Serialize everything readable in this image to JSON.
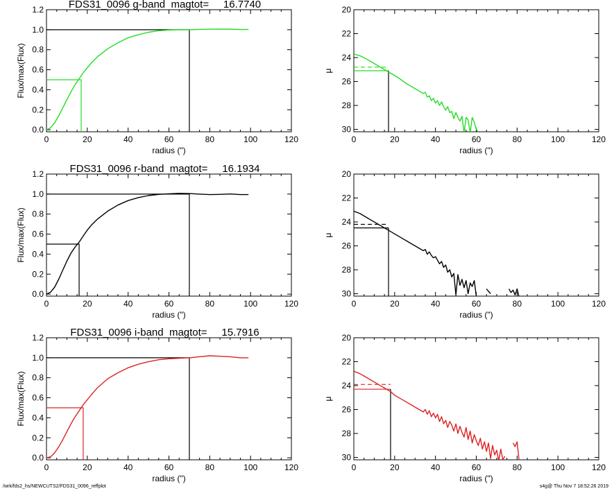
{
  "footer": {
    "left": "/wrk/fds2_hs/NEWCUTS2/FDS31_0096_reffplot",
    "right": "s4g@  Thu Nov  7 18:52:26 2019"
  },
  "chart_data": [
    {
      "type": "line",
      "title": "FDS31_0096 g-band  magtot=     16.7740",
      "xlabel": "radius (\")",
      "ylabel": "Flux/max(Flux)",
      "xlim": [
        0,
        120
      ],
      "ylim": [
        -0.02,
        1.2
      ],
      "xticks": [
        0,
        20,
        40,
        60,
        80,
        100,
        120
      ],
      "yticks": [
        0.0,
        0.2,
        0.4,
        0.6,
        0.8,
        1.0,
        1.2
      ],
      "ytick_labels": [
        "0.0",
        "0.2",
        "0.4",
        "0.6",
        "0.8",
        "1.0",
        "1.2"
      ],
      "color": "#22dd22",
      "series": [
        {
          "x": [
            0,
            2,
            4,
            6,
            8,
            10,
            12,
            14,
            16,
            18,
            20,
            22,
            25,
            30,
            35,
            40,
            45,
            50,
            55,
            60,
            65,
            70,
            75,
            80,
            85,
            90,
            95,
            99
          ],
          "y": [
            0.0,
            0.02,
            0.07,
            0.14,
            0.22,
            0.3,
            0.38,
            0.45,
            0.51,
            0.57,
            0.62,
            0.67,
            0.73,
            0.81,
            0.87,
            0.92,
            0.95,
            0.975,
            0.99,
            0.997,
            1.0,
            1.0,
            1.003,
            1.005,
            1.006,
            1.006,
            1.002,
            1.003
          ]
        }
      ],
      "reference_lines": {
        "total": {
          "x": 70,
          "y": 1.0,
          "color": "#000000"
        },
        "half": {
          "x": 17,
          "y": 0.5,
          "color": "#22dd22"
        }
      }
    },
    {
      "type": "line",
      "xlabel": "radius (\")",
      "ylabel": "μ",
      "xlim": [
        0,
        120
      ],
      "ylim": [
        30.2,
        20
      ],
      "xticks": [
        0,
        20,
        40,
        60,
        80,
        100,
        120
      ],
      "yticks": [
        20,
        22,
        24,
        26,
        28,
        30
      ],
      "color": "#22dd22",
      "series": [
        {
          "x": [
            0,
            3,
            6,
            9,
            12,
            15,
            18,
            20,
            22,
            24,
            26,
            28,
            30,
            32,
            34,
            35,
            36,
            37,
            38,
            39,
            40,
            41,
            42,
            43,
            44,
            45,
            46,
            47,
            48,
            49,
            50,
            51,
            52,
            53,
            54,
            55,
            56,
            57,
            58,
            59,
            60,
            61
          ],
          "y": [
            23.7,
            23.85,
            24.1,
            24.4,
            24.7,
            25.0,
            25.3,
            25.5,
            25.7,
            25.95,
            26.2,
            26.4,
            26.6,
            26.8,
            27.0,
            26.9,
            27.3,
            27.2,
            27.6,
            27.4,
            27.8,
            27.6,
            28.0,
            27.7,
            28.1,
            28.4,
            28.1,
            28.6,
            28.5,
            29.1,
            28.6,
            29.0,
            29.3,
            28.9,
            30.3,
            29.0,
            29.2,
            30.3,
            29.0,
            29.4,
            30.0,
            30.2
          ]
        }
      ],
      "reference_lines": {
        "solid_y": 25.1,
        "dashed_y": 24.8,
        "x": 17,
        "color": "#22dd22"
      }
    },
    {
      "type": "line",
      "title": "FDS31_0096 r-band  magtot=     16.1934",
      "xlabel": "radius (\")",
      "ylabel": "Flux/max(Flux)",
      "xlim": [
        0,
        120
      ],
      "ylim": [
        -0.02,
        1.2
      ],
      "xticks": [
        0,
        20,
        40,
        60,
        80,
        100,
        120
      ],
      "yticks": [
        0.0,
        0.2,
        0.4,
        0.6,
        0.8,
        1.0,
        1.2
      ],
      "ytick_labels": [
        "0.0",
        "0.2",
        "0.4",
        "0.6",
        "0.8",
        "1.0",
        "1.2"
      ],
      "color": "#000000",
      "series": [
        {
          "x": [
            0,
            2,
            4,
            6,
            8,
            10,
            12,
            14,
            16,
            18,
            20,
            22,
            25,
            30,
            35,
            40,
            45,
            50,
            55,
            60,
            65,
            70,
            75,
            80,
            85,
            90,
            95,
            99
          ],
          "y": [
            0.0,
            0.02,
            0.07,
            0.15,
            0.24,
            0.33,
            0.41,
            0.47,
            0.52,
            0.58,
            0.64,
            0.69,
            0.75,
            0.83,
            0.89,
            0.935,
            0.965,
            0.985,
            0.997,
            1.003,
            1.007,
            1.005,
            1.0,
            0.995,
            0.997,
            1.001,
            0.995,
            0.995
          ]
        }
      ],
      "reference_lines": {
        "total": {
          "x": 70,
          "y": 1.0,
          "color": "#000000"
        },
        "half": {
          "x": 16,
          "y": 0.5,
          "color": "#000000"
        }
      }
    },
    {
      "type": "line",
      "xlabel": "radius (\")",
      "ylabel": "μ",
      "xlim": [
        0,
        120
      ],
      "ylim": [
        30.2,
        20
      ],
      "xticks": [
        0,
        20,
        40,
        60,
        80,
        100,
        120
      ],
      "yticks": [
        20,
        22,
        24,
        26,
        28,
        30
      ],
      "color": "#000000",
      "series": [
        {
          "x": [
            0,
            3,
            6,
            9,
            12,
            15,
            18,
            20,
            22,
            24,
            26,
            28,
            30,
            32,
            34,
            35,
            36,
            37,
            38,
            39,
            40,
            41,
            42,
            43,
            44,
            45,
            46,
            47,
            48,
            49,
            50,
            51,
            52,
            53,
            54,
            55,
            56,
            57,
            58,
            59,
            60,
            61
          ],
          "y": [
            23.1,
            23.3,
            23.6,
            23.9,
            24.2,
            24.5,
            24.8,
            25.0,
            25.2,
            25.4,
            25.6,
            25.8,
            26.0,
            26.2,
            26.4,
            26.3,
            26.7,
            26.5,
            26.8,
            27.0,
            26.9,
            27.2,
            27.5,
            27.3,
            27.8,
            27.6,
            28.2,
            28.0,
            28.6,
            28.3,
            30.1,
            28.4,
            29.3,
            28.8,
            29.5,
            28.9,
            30.0,
            29.1,
            29.4,
            28.9,
            30.2,
            30.3
          ]
        },
        {
          "x": [
            65,
            66,
            67
          ],
          "y": [
            29.6,
            29.8,
            30.0
          ]
        },
        {
          "x": [
            76,
            77,
            78,
            79,
            80,
            81
          ],
          "y": [
            29.6,
            29.9,
            29.7,
            30.1,
            29.6,
            30.3
          ]
        }
      ],
      "reference_lines": {
        "solid_y": 24.5,
        "dashed_y": 24.2,
        "x": 17,
        "color": "#000000"
      }
    },
    {
      "type": "line",
      "title": "FDS31_0096 i-band  magtot=     15.7916",
      "xlabel": "radius (\")",
      "ylabel": "Flux/max(Flux)",
      "xlim": [
        0,
        120
      ],
      "ylim": [
        -0.02,
        1.2
      ],
      "xticks": [
        0,
        20,
        40,
        60,
        80,
        100,
        120
      ],
      "yticks": [
        0.0,
        0.2,
        0.4,
        0.6,
        0.8,
        1.0,
        1.2
      ],
      "ytick_labels": [
        "0.0",
        "0.2",
        "0.4",
        "0.6",
        "0.8",
        "1.0",
        "1.2"
      ],
      "color": "#dd2222",
      "series": [
        {
          "x": [
            0,
            2,
            4,
            6,
            8,
            10,
            12,
            14,
            16,
            18,
            20,
            22,
            25,
            30,
            35,
            40,
            45,
            50,
            55,
            60,
            65,
            70,
            75,
            80,
            85,
            90,
            95,
            99
          ],
          "y": [
            0.0,
            0.01,
            0.05,
            0.11,
            0.18,
            0.26,
            0.34,
            0.41,
            0.47,
            0.53,
            0.58,
            0.63,
            0.7,
            0.79,
            0.85,
            0.9,
            0.935,
            0.96,
            0.98,
            0.99,
            0.995,
            1.0,
            1.01,
            1.02,
            1.015,
            1.01,
            1.0,
            1.0
          ]
        }
      ],
      "reference_lines": {
        "total": {
          "x": 70,
          "y": 1.0,
          "color": "#000000"
        },
        "half": {
          "x": 18,
          "y": 0.5,
          "color": "#dd2222"
        }
      }
    },
    {
      "type": "line",
      "xlabel": "radius (\")",
      "ylabel": "μ",
      "xlim": [
        0,
        120
      ],
      "ylim": [
        30.2,
        20
      ],
      "xticks": [
        0,
        20,
        40,
        60,
        80,
        100,
        120
      ],
      "yticks": [
        20,
        22,
        24,
        26,
        28,
        30
      ],
      "color": "#dd2222",
      "series": [
        {
          "x": [
            0,
            3,
            6,
            9,
            12,
            15,
            18,
            20,
            22,
            24,
            26,
            28,
            30,
            32,
            34,
            35,
            36,
            37,
            38,
            39,
            40,
            41,
            42,
            43,
            44,
            45,
            46,
            47,
            48,
            49,
            50,
            51,
            52,
            53,
            54,
            55,
            56,
            57,
            58,
            59,
            60,
            61,
            62,
            63,
            64,
            65,
            66,
            67,
            68,
            69,
            70,
            71,
            72,
            73,
            74
          ],
          "y": [
            22.8,
            23.0,
            23.3,
            23.6,
            23.9,
            24.2,
            24.5,
            24.8,
            25.0,
            25.2,
            25.4,
            25.6,
            25.8,
            26.0,
            26.2,
            26.0,
            26.4,
            26.1,
            26.6,
            26.3,
            26.7,
            26.4,
            27.0,
            26.6,
            27.2,
            26.9,
            27.5,
            27.0,
            27.3,
            27.8,
            27.2,
            28.0,
            27.4,
            27.9,
            28.3,
            27.5,
            28.5,
            27.8,
            28.8,
            28.1,
            28.6,
            29.0,
            28.4,
            29.3,
            28.7,
            29.5,
            28.8,
            30.1,
            29.0,
            29.8,
            29.4,
            30.3,
            29.3,
            30.2,
            29.9
          ]
        },
        {
          "x": [
            78,
            79,
            80,
            81
          ],
          "y": [
            28.8,
            29.1,
            28.7,
            30.3
          ]
        }
      ],
      "reference_lines": {
        "solid_y": 24.3,
        "dashed_y": 23.9,
        "x": 18,
        "color": "#dd2222"
      }
    }
  ]
}
